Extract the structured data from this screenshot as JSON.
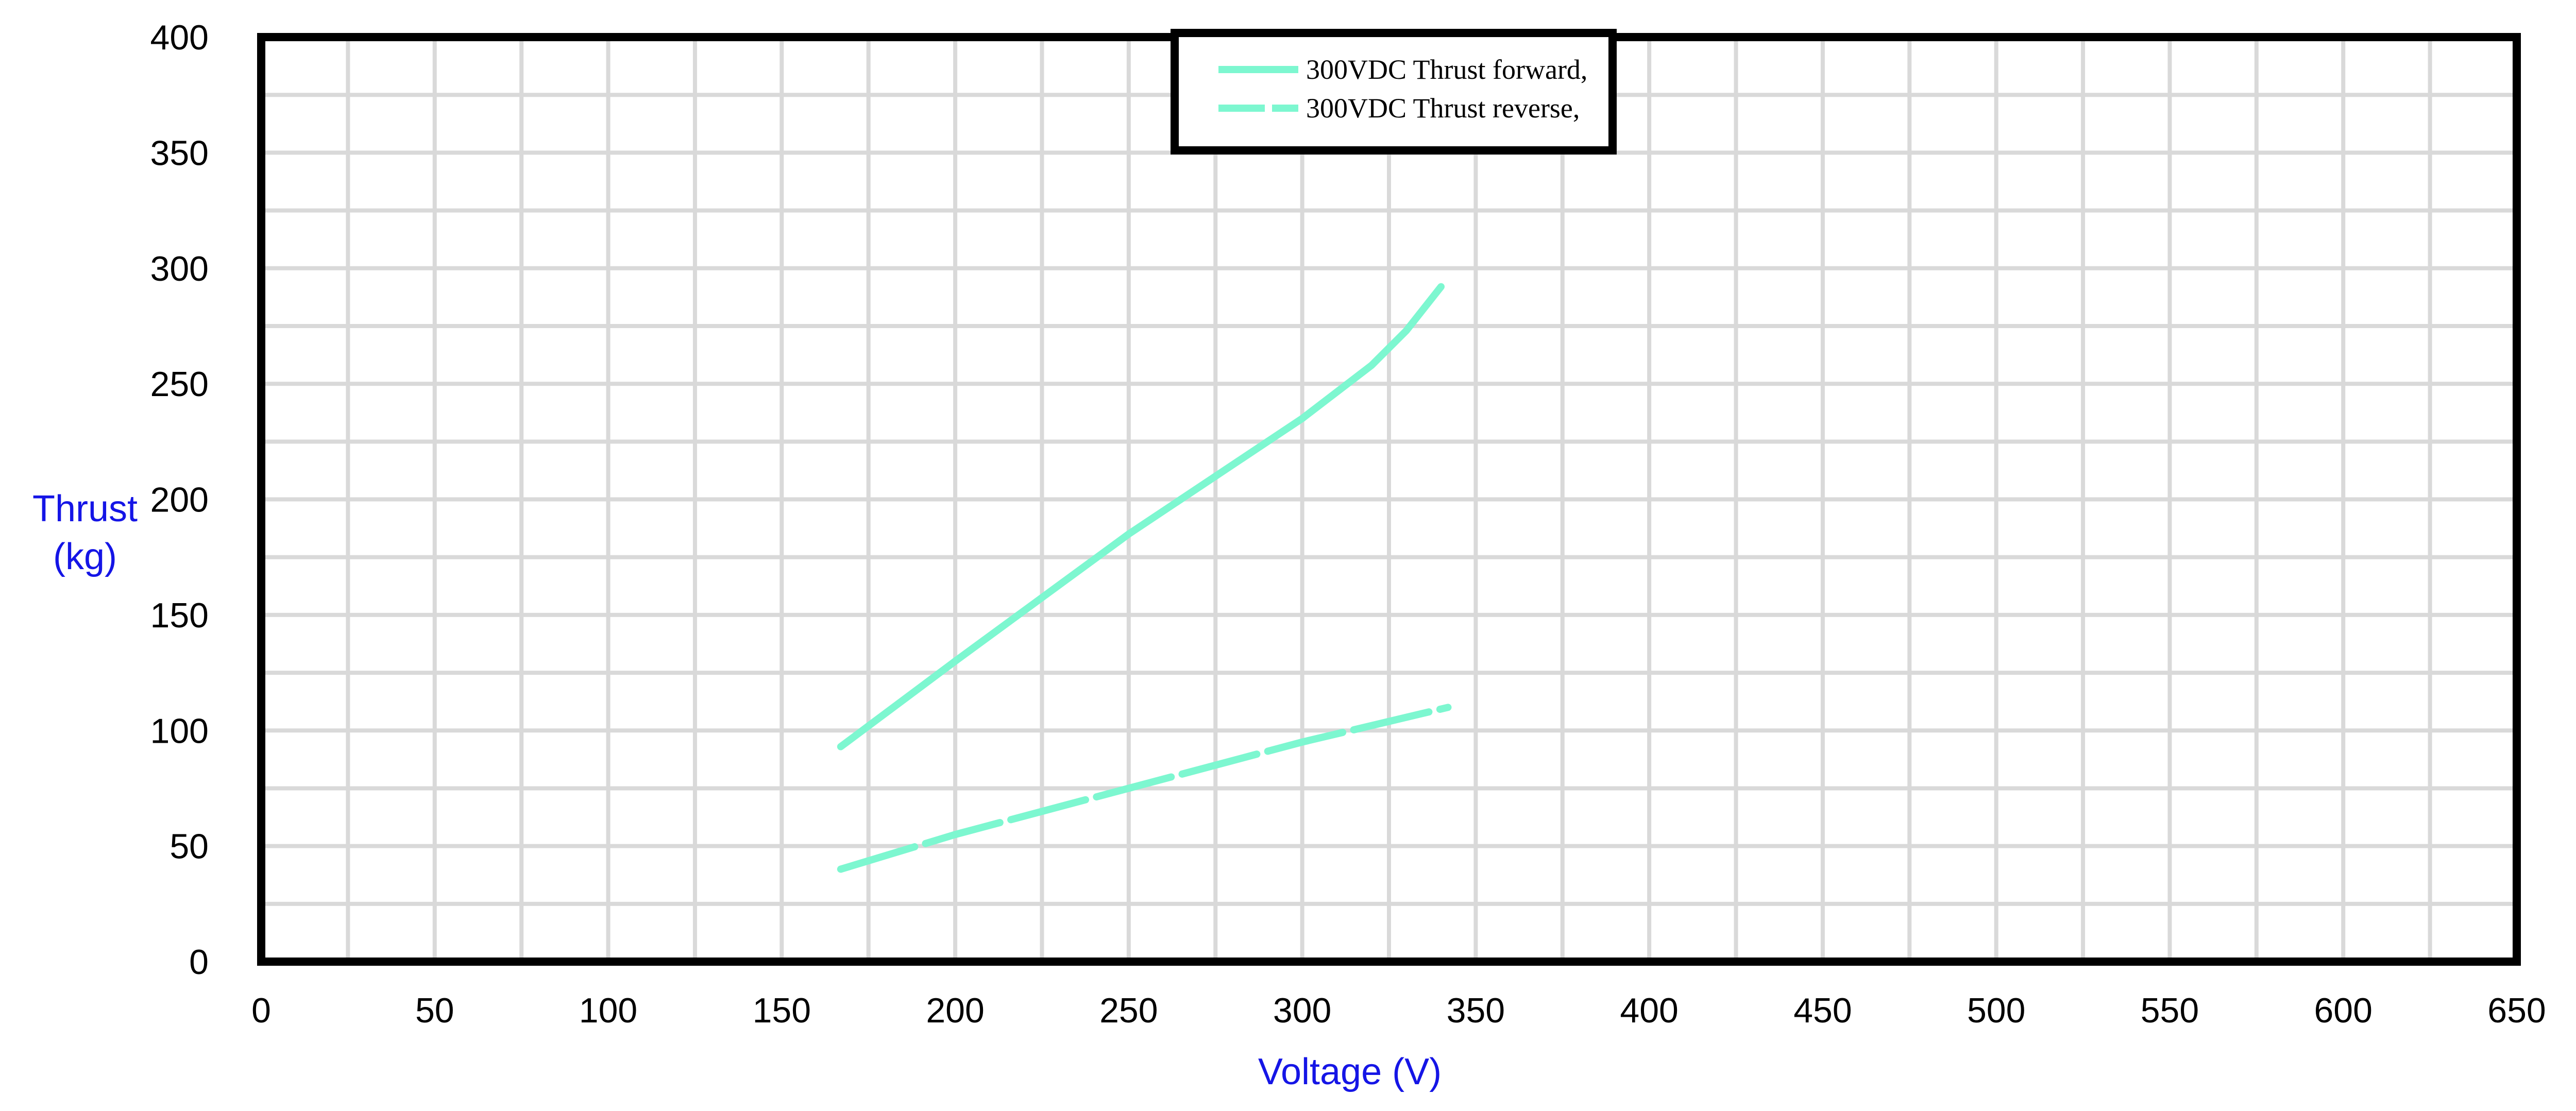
{
  "chart_data": {
    "type": "line",
    "xlabel": "Voltage (V)",
    "ylabel_lines": [
      "Thrust",
      "(kg)"
    ],
    "xlim": [
      0,
      650
    ],
    "ylim": [
      0,
      400
    ],
    "x_ticks": [
      0,
      50,
      100,
      150,
      200,
      250,
      300,
      350,
      400,
      450,
      500,
      550,
      600,
      650
    ],
    "y_ticks": [
      0,
      50,
      100,
      150,
      200,
      250,
      300,
      350,
      400
    ],
    "x_minor_step": 25,
    "y_minor_step": 25,
    "grid": true,
    "legend_position": "top-center",
    "colors": {
      "series": "#7df7d0",
      "axis_title": "#1515e6",
      "frame": "#000000",
      "grid": "#d9d9d9"
    },
    "series": [
      {
        "name": "300VDC  Thrust forward,",
        "style": "solid",
        "x": [
          167,
          200,
          250,
          300,
          320,
          330,
          340
        ],
        "y": [
          93,
          130,
          185,
          235,
          258,
          273,
          292
        ]
      },
      {
        "name": "300VDC  Thrust reverse,",
        "style": "dashed",
        "x": [
          167,
          200,
          250,
          300,
          342
        ],
        "y": [
          40,
          55,
          75,
          95,
          110
        ]
      }
    ]
  }
}
